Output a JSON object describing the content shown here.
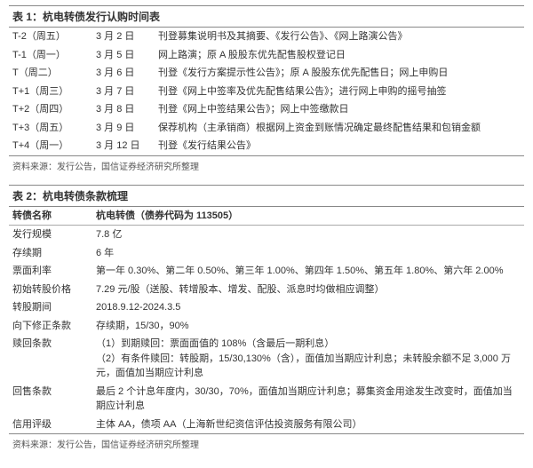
{
  "table1": {
    "title": "表 1：杭电转债发行认购时间表",
    "rows": [
      {
        "c0": "T-2（周五）",
        "c1": "3 月 2 日",
        "c2": "刊登募集说明书及其摘要、《发行公告》、《网上路演公告》"
      },
      {
        "c0": "T-1（周一）",
        "c1": "3 月 5 日",
        "c2": "网上路演；原 A 股股东优先配售股权登记日"
      },
      {
        "c0": "T（周二）",
        "c1": "3 月 6 日",
        "c2": "刊登《发行方案提示性公告》；原 A 股股东优先配售日；网上申购日"
      },
      {
        "c0": "T+1（周三）",
        "c1": "3 月 7 日",
        "c2": "刊登《网上中签率及优先配售结果公告》；进行网上申购的摇号抽签"
      },
      {
        "c0": "T+2（周四）",
        "c1": "3 月 8 日",
        "c2": "刊登《网上中签结果公告》；网上中签缴款日"
      },
      {
        "c0": "T+3（周五）",
        "c1": "3 月 9 日",
        "c2": "保荐机构（主承销商）根据网上资金到账情况确定最终配售结果和包销金额"
      },
      {
        "c0": "T+4（周一）",
        "c1": "3 月 12 日",
        "c2": "刊登《发行结果公告》"
      }
    ],
    "source": "资料来源：发行公告，国信证券经济研究所整理"
  },
  "table2": {
    "title": "表 2：杭电转债条款梳理",
    "header_label": "转债名称",
    "header_value": "杭电转债（债券代码为 113505）",
    "rows": [
      {
        "k": "发行规模",
        "v": "7.8 亿"
      },
      {
        "k": "存续期",
        "v": "6 年"
      },
      {
        "k": "票面利率",
        "v": "第一年 0.30%、第二年 0.50%、第三年 1.00%、第四年 1.50%、第五年 1.80%、第六年 2.00%"
      },
      {
        "k": "初始转股价格",
        "v": "7.29 元/股（送股、转增股本、增发、配股、派息时均做相应调整）"
      },
      {
        "k": "转股期间",
        "v": "2018.9.12-2024.3.5"
      },
      {
        "k": "向下修正条款",
        "v": "存续期，15/30，90%"
      },
      {
        "k": "赎回条款",
        "v": "（1）到期赎回：票面面值的 108%（含最后一期利息）\n（2）有条件赎回：转股期，15/30,130%（含），面值加当期应计利息；未转股余额不足 3,000 万元，面值加当期应计利息"
      },
      {
        "k": "回售条款",
        "v": "最后 2 个计息年度内，30/30，70%，面值加当期应计利息；募集资金用途发生改变时，面值加当期应计利息"
      },
      {
        "k": "信用评级",
        "v": "主体 AA，债项 AA（上海新世纪资信评估投资服务有限公司）"
      }
    ],
    "source": "资料来源：发行公告，国信证券经济研究所整理"
  }
}
